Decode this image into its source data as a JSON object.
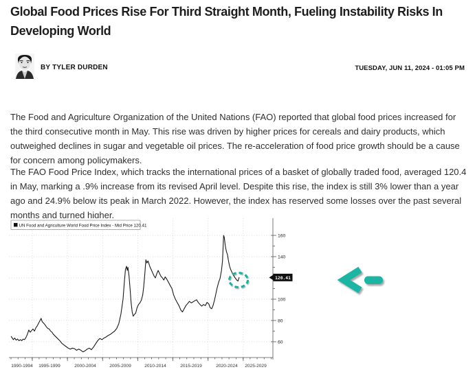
{
  "article": {
    "headline": "Global Food Prices Rise For Third Straight Month, Fueling Instability Risks In Developing World",
    "byline": "BY TYLER DURDEN",
    "date": "TUESDAY, JUN 11, 2024 - 01:05 PM",
    "paragraphs": [
      "The Food and Agriculture Organization of the United Nations (FAO) reported that global food prices increased for the third consecutive month in May. This rise was driven by higher prices for cereals and dairy products, which outweighed declines in sugar and vegetable oil prices. The re-acceleration of food price growth should be a cause for concern among policymakers.",
      "The FAO Food Price Index, which tracks the international prices of a basket of globally traded food, averaged 120.4 in May, marking a .9% increase from its revised April level. Despite this rise, the index is still 3% lower than a year ago and 24.9% below its peak in March 2022. However, the index has reserved some losses over the past several months and turned higher."
    ]
  },
  "chart_data": {
    "type": "line",
    "title": "",
    "legend": "UN Food and Agriculture World Food Price Index - Mid Price 120.41",
    "last_price": 120.41,
    "last_price_label": "120.41",
    "line_color": "#1a1a1a",
    "grid": true,
    "legend_position": "top-left",
    "xlabel": "",
    "ylabel": "",
    "ylim": [
      47,
      168
    ],
    "xlim": [
      1992,
      2029
    ],
    "yticks": [
      {
        "label": "160",
        "value": 160
      },
      {
        "label": "140",
        "value": 140
      },
      {
        "label": "100",
        "value": 100
      },
      {
        "label": "80",
        "value": 80
      },
      {
        "label": "60",
        "value": 60
      }
    ],
    "gridline_values": [
      160,
      140,
      120,
      100,
      80,
      60
    ],
    "minor_yticks": [
      150,
      130,
      110,
      90,
      70
    ],
    "x_gridline_years": [
      1995,
      2000,
      2005,
      2010,
      2015,
      2020,
      2025
    ],
    "x_band_labels": [
      "1990-1994",
      "1995-1999",
      "2000-2004",
      "2005-2009",
      "2010-2014",
      "2015-2019",
      "2020-2024",
      "2025-2029"
    ],
    "x_label_centers": [
      19,
      59,
      111,
      162,
      213,
      265,
      317,
      359
    ],
    "points": [
      [
        1992.0,
        65
      ],
      [
        1992.1,
        64
      ],
      [
        1992.3,
        62
      ],
      [
        1992.5,
        63.5
      ],
      [
        1992.7,
        61.5
      ],
      [
        1992.9,
        62.5
      ],
      [
        1993.1,
        61
      ],
      [
        1993.3,
        62
      ],
      [
        1993.5,
        61
      ],
      [
        1993.7,
        62.5
      ],
      [
        1993.9,
        62
      ],
      [
        1994.1,
        64
      ],
      [
        1994.3,
        67
      ],
      [
        1994.5,
        71
      ],
      [
        1994.7,
        69
      ],
      [
        1994.9,
        70.5
      ],
      [
        1995.1,
        72
      ],
      [
        1995.3,
        70
      ],
      [
        1995.5,
        73
      ],
      [
        1995.7,
        75
      ],
      [
        1995.9,
        77.5
      ],
      [
        1996.1,
        80
      ],
      [
        1996.25,
        82
      ],
      [
        1996.4,
        79
      ],
      [
        1996.6,
        77.5
      ],
      [
        1996.8,
        76
      ],
      [
        1997.0,
        74
      ],
      [
        1997.2,
        72.5
      ],
      [
        1997.4,
        72
      ],
      [
        1997.6,
        70
      ],
      [
        1997.8,
        69
      ],
      [
        1998.0,
        67
      ],
      [
        1998.3,
        65
      ],
      [
        1998.6,
        63
      ],
      [
        1998.9,
        61
      ],
      [
        1999.2,
        58.5
      ],
      [
        1999.5,
        57
      ],
      [
        1999.8,
        55.5
      ],
      [
        2000.1,
        54
      ],
      [
        2000.4,
        53
      ],
      [
        2000.7,
        54
      ],
      [
        2001.0,
        53.5
      ],
      [
        2001.3,
        52
      ],
      [
        2001.6,
        53
      ],
      [
        2001.9,
        52
      ],
      [
        2002.2,
        50.5
      ],
      [
        2002.5,
        51.5
      ],
      [
        2002.8,
        53
      ],
      [
        2003.1,
        54
      ],
      [
        2003.4,
        52.5
      ],
      [
        2003.7,
        55
      ],
      [
        2004.0,
        58
      ],
      [
        2004.3,
        61
      ],
      [
        2004.6,
        63
      ],
      [
        2004.9,
        62
      ],
      [
        2005.2,
        63.5
      ],
      [
        2005.5,
        64.5
      ],
      [
        2005.8,
        66
      ],
      [
        2006.1,
        67
      ],
      [
        2006.4,
        68.5
      ],
      [
        2006.7,
        70
      ],
      [
        2007.0,
        72.5
      ],
      [
        2007.3,
        77
      ],
      [
        2007.6,
        86
      ],
      [
        2007.9,
        100
      ],
      [
        2008.1,
        117
      ],
      [
        2008.25,
        128
      ],
      [
        2008.4,
        131
      ],
      [
        2008.5,
        127
      ],
      [
        2008.6,
        130
      ],
      [
        2008.75,
        122
      ],
      [
        2008.9,
        110
      ],
      [
        2009.05,
        97
      ],
      [
        2009.2,
        88
      ],
      [
        2009.35,
        84
      ],
      [
        2009.5,
        85.5
      ],
      [
        2009.7,
        87
      ],
      [
        2009.9,
        92
      ],
      [
        2010.1,
        95
      ],
      [
        2010.3,
        96.5
      ],
      [
        2010.5,
        99
      ],
      [
        2010.7,
        104
      ],
      [
        2010.85,
        112
      ],
      [
        2011.0,
        124
      ],
      [
        2011.15,
        137
      ],
      [
        2011.3,
        134
      ],
      [
        2011.45,
        136
      ],
      [
        2011.6,
        133
      ],
      [
        2011.75,
        130
      ],
      [
        2011.9,
        128
      ],
      [
        2012.1,
        125
      ],
      [
        2012.3,
        122
      ],
      [
        2012.5,
        120
      ],
      [
        2012.7,
        124
      ],
      [
        2012.9,
        127
      ],
      [
        2013.1,
        124
      ],
      [
        2013.3,
        121.5
      ],
      [
        2013.5,
        120
      ],
      [
        2013.7,
        118
      ],
      [
        2013.9,
        121
      ],
      [
        2014.1,
        119
      ],
      [
        2014.35,
        116
      ],
      [
        2014.6,
        113
      ],
      [
        2014.85,
        110
      ],
      [
        2015.1,
        104
      ],
      [
        2015.35,
        100
      ],
      [
        2015.6,
        97
      ],
      [
        2015.85,
        94
      ],
      [
        2016.1,
        90
      ],
      [
        2016.35,
        88
      ],
      [
        2016.6,
        91
      ],
      [
        2016.85,
        94
      ],
      [
        2017.1,
        96
      ],
      [
        2017.35,
        98
      ],
      [
        2017.6,
        96.5
      ],
      [
        2017.85,
        97.5
      ],
      [
        2018.1,
        98.5
      ],
      [
        2018.35,
        99.5
      ],
      [
        2018.6,
        97
      ],
      [
        2018.85,
        95
      ],
      [
        2019.1,
        93.5
      ],
      [
        2019.35,
        95
      ],
      [
        2019.6,
        94
      ],
      [
        2019.85,
        97
      ],
      [
        2020.1,
        95.5
      ],
      [
        2020.3,
        92
      ],
      [
        2020.5,
        91
      ],
      [
        2020.7,
        94
      ],
      [
        2020.9,
        99
      ],
      [
        2021.1,
        105
      ],
      [
        2021.3,
        111
      ],
      [
        2021.5,
        116
      ],
      [
        2021.7,
        119.5
      ],
      [
        2021.9,
        127
      ],
      [
        2022.05,
        136
      ],
      [
        2022.2,
        160
      ],
      [
        2022.3,
        158
      ],
      [
        2022.45,
        150
      ],
      [
        2022.6,
        145
      ],
      [
        2022.75,
        142
      ],
      [
        2022.9,
        136
      ],
      [
        2023.05,
        131
      ],
      [
        2023.2,
        128
      ],
      [
        2023.35,
        126
      ],
      [
        2023.5,
        123.5
      ],
      [
        2023.65,
        122
      ],
      [
        2023.8,
        120.5
      ],
      [
        2023.95,
        119
      ],
      [
        2024.1,
        117.8
      ],
      [
        2024.25,
        117
      ],
      [
        2024.4,
        120.41
      ]
    ]
  },
  "annotations": {
    "ellipse_color": "#19b2a0",
    "arrow_color": "#1bb5a4"
  }
}
